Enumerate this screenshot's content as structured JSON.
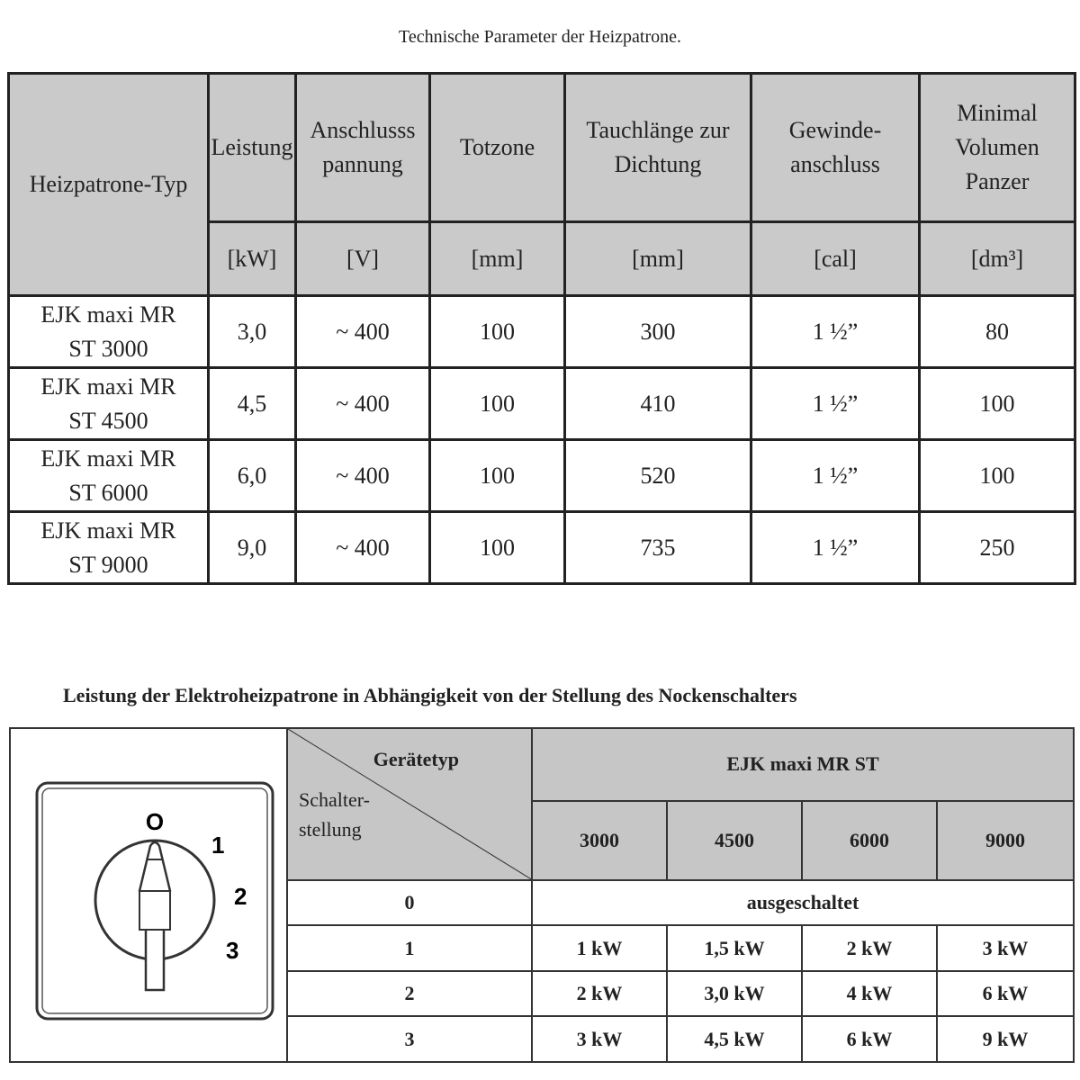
{
  "table1": {
    "title": "Technische Parameter der Heizpatrone.",
    "headers": [
      {
        "name": "Heizpatrone-Typ",
        "unit": ""
      },
      {
        "name": "Leistung",
        "unit": "[kW]"
      },
      {
        "name": "Anschlussspannung",
        "unit": "[V]"
      },
      {
        "name": "Totzone",
        "unit": "[mm]"
      },
      {
        "name": "Tauchlänge zur Dichtung",
        "unit": "[mm]"
      },
      {
        "name": "Gewinde-anschluss",
        "unit": "[cal]"
      },
      {
        "name": "Minimal Volumen Panzer",
        "unit": "[dm³]"
      }
    ],
    "rows": [
      [
        "EJK maxi MR ST 3000",
        "3,0",
        "~ 400",
        "100",
        "300",
        "1 ½”",
        "80"
      ],
      [
        "EJK maxi MR ST 4500",
        "4,5",
        "~ 400",
        "100",
        "410",
        "1 ½”",
        "100"
      ],
      [
        "EJK maxi MR ST 6000",
        "6,0",
        "~ 400",
        "100",
        "520",
        "1 ½”",
        "100"
      ],
      [
        "EJK maxi MR ST 9000",
        "9,0",
        "~ 400",
        "100",
        "735",
        "1 ½”",
        "250"
      ]
    ]
  },
  "table2": {
    "title": "Leistung der Elektroheizpatrone in Abhängigkeit von der Stellung des Nockenschalters",
    "corner_top": "Gerätetyp",
    "corner_bottom": "Schalter-stellung",
    "group_header": "EJK maxi MR ST",
    "models": [
      "3000",
      "4500",
      "6000",
      "9000"
    ],
    "off_label": "ausgeschaltet",
    "rows": [
      {
        "position": "0"
      },
      {
        "position": "1",
        "values": [
          "1 kW",
          "1,5 kW",
          "2 kW",
          "3 kW"
        ]
      },
      {
        "position": "2",
        "values": [
          "2 kW",
          "3,0 kW",
          "4 kW",
          "6 kW"
        ]
      },
      {
        "position": "3",
        "values": [
          "3 kW",
          "4,5 kW",
          "6 kW",
          "9 kW"
        ]
      }
    ],
    "switch_labels": [
      "O",
      "1",
      "2",
      "3"
    ]
  }
}
